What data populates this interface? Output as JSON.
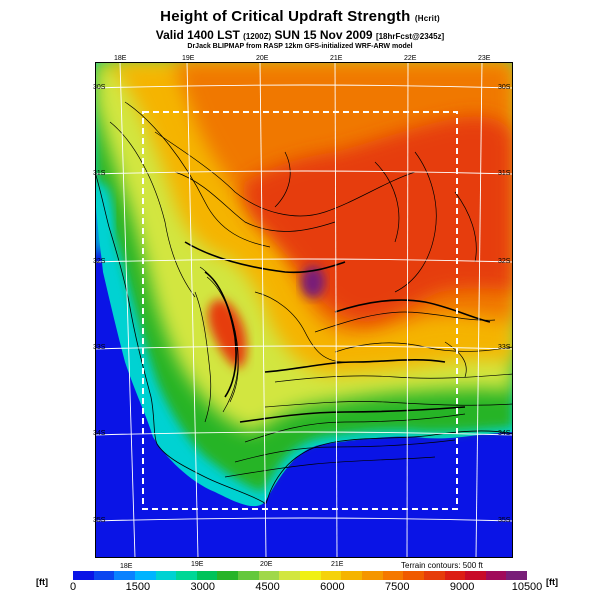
{
  "title": "Height of Critical Updraft Strength",
  "title_unit": "(Hcrit)",
  "subtitle_main": "Valid 1400 LST",
  "subtitle_small1": "(1200Z)",
  "subtitle_date": "SUN 15 Nov 2009",
  "subtitle_small2": "[18hrFcst@2345z]",
  "credit_line": "DrJack BLIPMAP from RASP 12km GFS-initialized WRF-ARW model",
  "terrain_note": "Terrain contours: 500 ft",
  "units_label": "[ft]",
  "lon_labels_top": [
    "18E",
    "19E",
    "20E",
    "21E",
    "22E",
    "23E"
  ],
  "lon_labels_bottom": [
    "18E",
    "19E",
    "20E",
    "21E"
  ],
  "lat_labels_left": [
    "30S",
    "31S",
    "32S",
    "33S",
    "34S",
    "35S"
  ],
  "lat_labels_right": [
    "30S",
    "31S",
    "32S",
    "33S",
    "34S",
    "35S"
  ],
  "colorbar": {
    "ticks": [
      "0",
      "1500",
      "3000",
      "4500",
      "6000",
      "7500",
      "9000",
      "10500"
    ],
    "colors": [
      "#0a14e6",
      "#0b46f0",
      "#0a82ff",
      "#00b4ff",
      "#00d2d2",
      "#00d796",
      "#00c35a",
      "#28b428",
      "#64c83c",
      "#a0d84a",
      "#d2e640",
      "#f0f014",
      "#f5d20a",
      "#f5b400",
      "#f59600",
      "#f57800",
      "#f05a00",
      "#e63c0a",
      "#dc1e14",
      "#c80a28",
      "#a00a5a",
      "#781e78"
    ]
  }
}
